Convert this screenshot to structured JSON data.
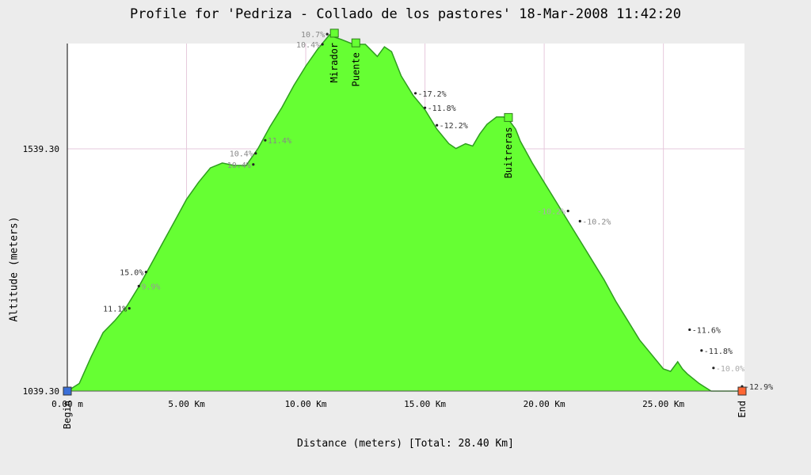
{
  "chart_data": {
    "type": "area",
    "title": "Profile for 'Pedriza - Collado de los pastores' 18-Mar-2008 11:42:20",
    "xlabel": "Distance (meters) [Total: 28.40 Km]",
    "ylabel": "Altitude (meters)",
    "xlim": [
      0,
      28.4
    ],
    "ylim": [
      1039.3,
      1750
    ],
    "x_ticks": [
      "0.00 m",
      "5.00 Km",
      "10.00 Km",
      "15.00 Km",
      "20.00 Km",
      "25.00 Km"
    ],
    "y_ticks": [
      "1039.30",
      "1539.30"
    ],
    "grid": true,
    "fill_color": "#66ff33",
    "line_color": "#2e9e1e",
    "profile": {
      "x": [
        0,
        0.5,
        1,
        1.5,
        2,
        2.5,
        3,
        3.5,
        4,
        4.5,
        5,
        5.5,
        6,
        6.5,
        7,
        7.5,
        8,
        8.5,
        9,
        9.5,
        10,
        10.5,
        11,
        11.2,
        11.5,
        12,
        12.5,
        13,
        13.3,
        13.6,
        14,
        14.5,
        15,
        15.5,
        16,
        16.3,
        16.7,
        17,
        17.3,
        17.6,
        18,
        18.3,
        18.5,
        18.8,
        19,
        19.5,
        20,
        20.5,
        21,
        21.5,
        22,
        22.5,
        23,
        23.5,
        24,
        24.5,
        25,
        25.3,
        25.6,
        25.8,
        26,
        26.5,
        27,
        27.5,
        28,
        28.4
      ],
      "y": [
        1039,
        1055,
        1110,
        1160,
        1185,
        1215,
        1255,
        1300,
        1345,
        1390,
        1435,
        1470,
        1500,
        1510,
        1505,
        1505,
        1540,
        1585,
        1625,
        1670,
        1710,
        1745,
        1775,
        1770,
        1765,
        1755,
        1755,
        1730,
        1750,
        1740,
        1690,
        1650,
        1620,
        1580,
        1550,
        1540,
        1550,
        1545,
        1570,
        1590,
        1605,
        1605,
        1600,
        1580,
        1555,
        1510,
        1470,
        1430,
        1390,
        1350,
        1310,
        1270,
        1225,
        1185,
        1145,
        1115,
        1085,
        1080,
        1100,
        1085,
        1075,
        1055,
        1035,
        1025,
        1020,
        1017
      ]
    },
    "waypoints": [
      {
        "name": "Begin",
        "x": 0,
        "y": 1039,
        "color": "#3a6fd8"
      },
      {
        "name": "Mirador",
        "x": 11.2,
        "y": 1778,
        "color": "#66ff33"
      },
      {
        "name": "Puente",
        "x": 12.1,
        "y": 1758,
        "color": "#66ff33"
      },
      {
        "name": "Buitreras",
        "x": 18.5,
        "y": 1604,
        "color": "#66ff33"
      },
      {
        "name": "End",
        "x": 28.3,
        "y": 1017,
        "color": "#ff6633"
      }
    ],
    "slope_labels": [
      {
        "text": "11.1%",
        "x": 2.6,
        "y": 1210,
        "side": "left",
        "color": "#333"
      },
      {
        "text": "15.0%",
        "x": 3.3,
        "y": 1285,
        "side": "left",
        "color": "#333"
      },
      {
        "text": "9.9%",
        "x": 3.0,
        "y": 1256,
        "side": "right",
        "color": "#999"
      },
      {
        "text": "10.4%",
        "x": 7.8,
        "y": 1507,
        "side": "left",
        "color": "#888"
      },
      {
        "text": "10.4%",
        "x": 7.9,
        "y": 1530,
        "side": "left",
        "color": "#888"
      },
      {
        "text": "11.4%",
        "x": 8.3,
        "y": 1557,
        "side": "right",
        "color": "#888"
      },
      {
        "text": "10.4%",
        "x": 10.7,
        "y": 1755,
        "side": "left",
        "color": "#888"
      },
      {
        "text": "10.7%",
        "x": 10.9,
        "y": 1776,
        "side": "left",
        "color": "#888"
      },
      {
        "text": "-17.2%",
        "x": 14.6,
        "y": 1654,
        "side": "right",
        "color": "#333"
      },
      {
        "text": "-11.8%",
        "x": 15.0,
        "y": 1624,
        "side": "right",
        "color": "#333"
      },
      {
        "text": "-12.2%",
        "x": 15.5,
        "y": 1588,
        "side": "right",
        "color": "#333"
      },
      {
        "text": "-10.2%",
        "x": 21.0,
        "y": 1411,
        "side": "left",
        "color": "#aaa"
      },
      {
        "text": "-10.2%",
        "x": 21.5,
        "y": 1390,
        "side": "right",
        "color": "#888"
      },
      {
        "text": "-11.6%",
        "x": 26.1,
        "y": 1166,
        "side": "right",
        "color": "#333"
      },
      {
        "text": "-11.8%",
        "x": 26.6,
        "y": 1123,
        "side": "right",
        "color": "#333"
      },
      {
        "text": "-10.0%",
        "x": 27.1,
        "y": 1087,
        "side": "right",
        "color": "#aaa"
      },
      {
        "text": "-12.9%",
        "x": 28.3,
        "y": 1049,
        "side": "right",
        "color": "#333"
      }
    ]
  }
}
